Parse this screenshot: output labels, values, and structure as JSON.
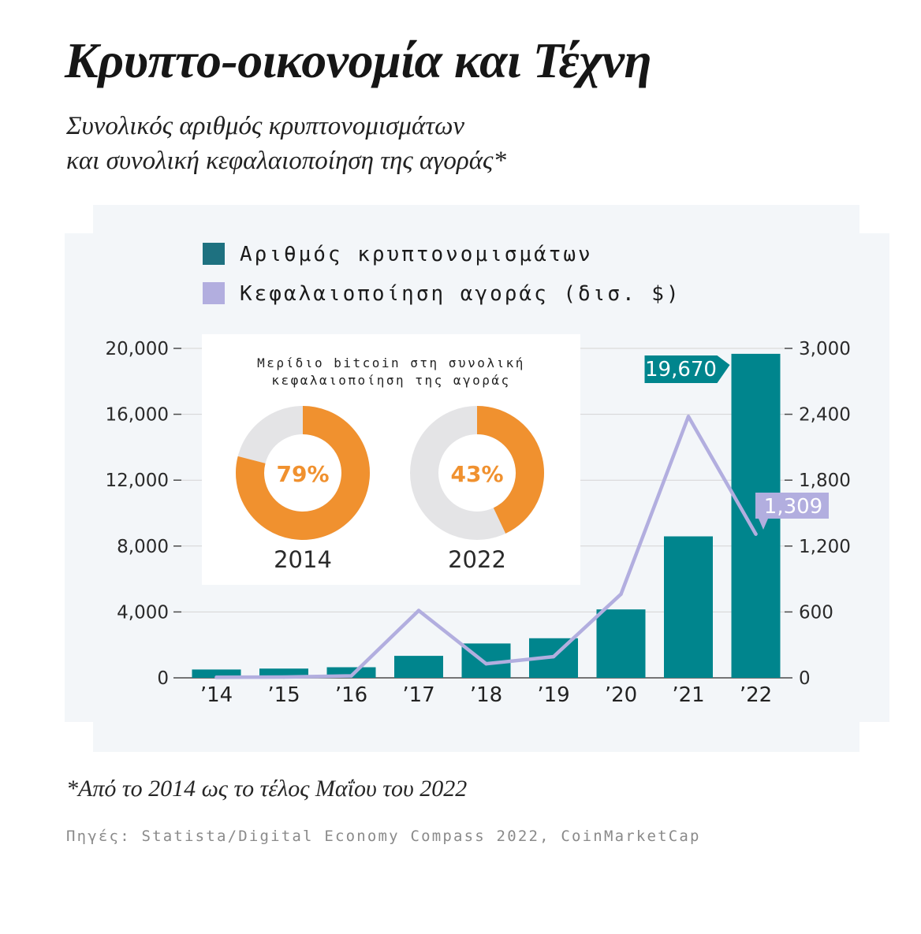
{
  "header": {
    "title": "Κρυπτο-οικονομία και Τέχνη",
    "subtitle_line1": "Συνολικός αριθμός κρυπτονομισμάτων",
    "subtitle_line2": "και συνολική κεφαλαιοποίηση της αγοράς*"
  },
  "footer": {
    "footnote": "*Από το 2014 ως το τέλος Μαΐου του 2022",
    "source": "Πηγές: Statista/Digital Economy Compass 2022, CoinMarketCap"
  },
  "colors": {
    "panel_bg": "#f3f6f9",
    "bar": "#00858d",
    "legend_bar": "#1e7180",
    "line": "#b2aedf",
    "donut_fill": "#f0912f",
    "donut_rest": "#e4e4e6",
    "axis": "#4a4a4a"
  },
  "chart_data": {
    "type": "bar",
    "categories": [
      "’14",
      "’15",
      "’16",
      "’17",
      "’18",
      "’19",
      "’20",
      "’21",
      "’22"
    ],
    "series": [
      {
        "name": "Αριθμός κρυπτονομισμάτων",
        "type": "bar",
        "axis": "left",
        "values": [
          506,
          562,
          644,
          1335,
          2086,
          2403,
          4154,
          8588,
          19670
        ]
      },
      {
        "name": "Κεφαλαιοποίηση αγοράς (δισ. $)",
        "type": "line",
        "axis": "right",
        "values": [
          5,
          7,
          18,
          613,
          128,
          193,
          762,
          2380,
          1309
        ]
      }
    ],
    "left_axis": {
      "min": 0,
      "max": 20000,
      "ticks": [
        0,
        4000,
        8000,
        12000,
        16000,
        20000
      ],
      "tick_labels": [
        "0",
        "4,000",
        "8,000",
        "12,000",
        "16,000",
        "20,000"
      ]
    },
    "right_axis": {
      "min": 0,
      "max": 3000,
      "ticks": [
        0,
        600,
        1200,
        1800,
        2400,
        3000
      ],
      "tick_labels": [
        "0",
        "600",
        "1,200",
        "1,800",
        "2,400",
        "3,000"
      ]
    },
    "callouts": [
      {
        "series": 0,
        "index": 8,
        "label": "19,670"
      },
      {
        "series": 1,
        "index": 8,
        "label": "1,309"
      }
    ],
    "legend": [
      {
        "label": "Αριθμός κρυπτονομισμάτων",
        "swatch": "legend_bar"
      },
      {
        "label": "Κεφαλαιοποίηση αγοράς (δισ. $)",
        "swatch": "line"
      }
    ],
    "inset": {
      "type": "pie",
      "title_line1": "Μερίδιο bitcoin στη συνολική",
      "title_line2": "κεφαλαιοποίηση της αγοράς",
      "donuts": [
        {
          "year": "2014",
          "value": 79,
          "label": "79%"
        },
        {
          "year": "2022",
          "value": 43,
          "label": "43%"
        }
      ]
    }
  }
}
